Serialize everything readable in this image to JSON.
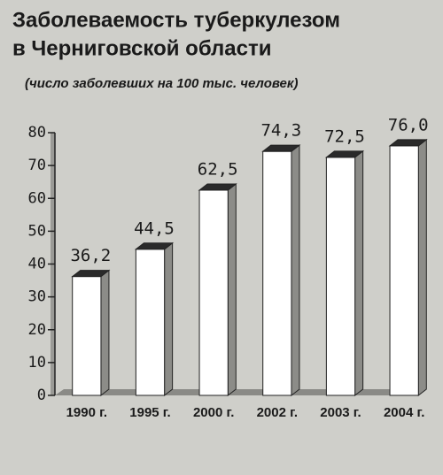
{
  "chart_data": {
    "type": "bar",
    "title": [
      "Заболеваемость туберкулезом",
      "в Черниговской области"
    ],
    "subtitle": "(число заболевших на 100 тыс. человек)",
    "categories": [
      "1990 г.",
      "1995 г.",
      "2000 г.",
      "2002 г.",
      "2003 г.",
      "2004 г."
    ],
    "values": [
      36.2,
      44.5,
      62.5,
      74.3,
      72.5,
      76.0
    ],
    "value_labels": [
      "36,2",
      "44,5",
      "62,5",
      "74,3",
      "72,5",
      "76,0"
    ],
    "color": "#ffffff",
    "ylim": [
      0,
      80
    ],
    "yticks": [
      0,
      10,
      20,
      30,
      40,
      50,
      60,
      70,
      80
    ],
    "grid": false
  }
}
